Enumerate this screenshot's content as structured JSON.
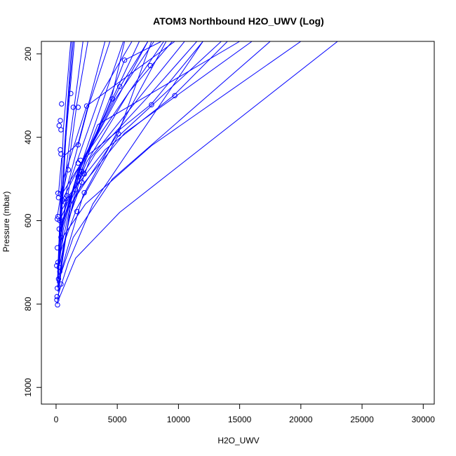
{
  "chart_data": {
    "type": "line",
    "title": "ATOM3 Northbound H2O_UWV (Log)",
    "xlabel": "H2O_UWV",
    "ylabel": "Pressure (mbar)",
    "xlim": [
      -1200,
      30900
    ],
    "ylim": [
      1040,
      170
    ],
    "y_reversed": true,
    "x_ticks": [
      "0",
      "5000",
      "10000",
      "15000",
      "20000",
      "25000",
      "30000"
    ],
    "y_ticks": [
      "200",
      "400",
      "600",
      "800",
      "1000"
    ],
    "grid": false,
    "legend": "none",
    "series_color": "#0000ff",
    "marker": "open-circle",
    "series": [
      {
        "x": [
          150,
          300,
          800,
          1500
        ],
        "y": [
          760,
          600,
          400,
          170
        ]
      },
      {
        "x": [
          200,
          350,
          700,
          1300
        ],
        "y": [
          730,
          620,
          420,
          170
        ]
      },
      {
        "x": [
          100,
          250,
          600,
          1200
        ],
        "y": [
          750,
          640,
          380,
          170
        ]
      },
      {
        "x": [
          300,
          500,
          900,
          1400
        ],
        "y": [
          700,
          560,
          350,
          170
        ]
      },
      {
        "x": [
          150,
          400,
          1100,
          2200
        ],
        "y": [
          720,
          580,
          410,
          170
        ]
      },
      {
        "x": [
          250,
          900,
          2600,
          4400
        ],
        "y": [
          690,
          520,
          330,
          170
        ]
      },
      {
        "x": [
          200,
          1200,
          3600,
          6200
        ],
        "y": [
          660,
          500,
          300,
          170
        ]
      },
      {
        "x": [
          300,
          1800,
          4800,
          8000
        ],
        "y": [
          640,
          480,
          310,
          170
        ]
      },
      {
        "x": [
          400,
          2500,
          6000,
          9500
        ],
        "y": [
          610,
          460,
          290,
          170
        ]
      },
      {
        "x": [
          350,
          3200,
          7600,
          11500
        ],
        "y": [
          580,
          440,
          300,
          170
        ]
      },
      {
        "x": [
          500,
          4000,
          9600,
          14000
        ],
        "y": [
          560,
          430,
          300,
          170
        ]
      },
      {
        "x": [
          450,
          2000,
          5600,
          16000
        ],
        "y": [
          600,
          520,
          390,
          170
        ]
      },
      {
        "x": [
          300,
          2400,
          7800,
          20000
        ],
        "y": [
          650,
          560,
          420,
          170
        ]
      },
      {
        "x": [
          200,
          1600,
          5200,
          23000
        ],
        "y": [
          790,
          690,
          580,
          170
        ]
      },
      {
        "x": [
          150,
          1000,
          3000,
          12000
        ],
        "y": [
          780,
          700,
          560,
          170
        ]
      },
      {
        "x": [
          100,
          800,
          2200,
          9000
        ],
        "y": [
          760,
          680,
          540,
          170
        ]
      },
      {
        "x": [
          250,
          1400,
          4600,
          17500
        ],
        "y": [
          740,
          640,
          500,
          170
        ]
      },
      {
        "x": [
          200,
          600,
          1800,
          7500
        ],
        "y": [
          720,
          620,
          480,
          170
        ]
      },
      {
        "x": [
          350,
          1100,
          2800,
          10500
        ],
        "y": [
          700,
          590,
          450,
          170
        ]
      },
      {
        "x": [
          300,
          1700,
          5000,
          13500
        ],
        "y": [
          680,
          570,
          400,
          170
        ]
      },
      {
        "x": [
          100,
          500,
          1400,
          5500
        ],
        "y": [
          800,
          700,
          520,
          170
        ]
      },
      {
        "x": [
          150,
          700,
          2000,
          6800
        ],
        "y": [
          770,
          650,
          470,
          170
        ]
      },
      {
        "x": [
          400,
          1300,
          3400,
          15000
        ],
        "y": [
          620,
          530,
          370,
          170
        ]
      },
      {
        "x": [
          200,
          950,
          2500,
          8800
        ],
        "y": [
          740,
          610,
          440,
          170
        ]
      },
      {
        "x": [
          300,
          2100,
          5600,
          8600
        ],
        "y": [
          600,
          480,
          215,
          170
        ]
      },
      {
        "x": [
          250,
          1500,
          4500,
          5600
        ],
        "y": [
          630,
          520,
          310,
          170
        ]
      },
      {
        "x": [
          150,
          1200,
          5100,
          7800
        ],
        "y": [
          700,
          560,
          390,
          170
        ]
      },
      {
        "x": [
          400,
          2300,
          7800,
          12000
        ],
        "y": [
          540,
          450,
          320,
          170
        ]
      },
      {
        "x": [
          100,
          600,
          2500,
          9700
        ],
        "y": [
          590,
          500,
          325,
          170
        ]
      },
      {
        "x": [
          350,
          1900,
          5200,
          7500
        ],
        "y": [
          560,
          470,
          280,
          170
        ]
      },
      {
        "x": [
          200,
          450,
          1800,
          4000
        ],
        "y": [
          535,
          450,
          415,
          170
        ]
      },
      {
        "x": [
          500,
          1000,
          1700,
          2600
        ],
        "y": [
          540,
          470,
          320,
          170
        ]
      }
    ],
    "points": [
      {
        "x": 5600,
        "y": 215
      },
      {
        "x": 7700,
        "y": 228
      },
      {
        "x": 5200,
        "y": 278
      },
      {
        "x": 9700,
        "y": 300
      },
      {
        "x": 4600,
        "y": 308
      },
      {
        "x": 7800,
        "y": 322
      },
      {
        "x": 1200,
        "y": 295
      },
      {
        "x": 1400,
        "y": 328
      },
      {
        "x": 1800,
        "y": 328
      },
      {
        "x": 2500,
        "y": 325
      },
      {
        "x": 450,
        "y": 320
      },
      {
        "x": 350,
        "y": 360
      },
      {
        "x": 250,
        "y": 372
      },
      {
        "x": 400,
        "y": 382
      },
      {
        "x": 5100,
        "y": 392
      },
      {
        "x": 1800,
        "y": 418
      },
      {
        "x": 350,
        "y": 430
      },
      {
        "x": 400,
        "y": 440
      },
      {
        "x": 2000,
        "y": 455
      },
      {
        "x": 1800,
        "y": 462
      },
      {
        "x": 1000,
        "y": 478
      },
      {
        "x": 2100,
        "y": 482
      },
      {
        "x": 2300,
        "y": 488
      },
      {
        "x": 1800,
        "y": 495
      },
      {
        "x": 2100,
        "y": 508
      },
      {
        "x": 1600,
        "y": 526
      },
      {
        "x": 2300,
        "y": 533
      },
      {
        "x": 150,
        "y": 534
      },
      {
        "x": 350,
        "y": 536
      },
      {
        "x": 900,
        "y": 540
      },
      {
        "x": 200,
        "y": 545
      },
      {
        "x": 500,
        "y": 550
      },
      {
        "x": 700,
        "y": 555
      },
      {
        "x": 1700,
        "y": 578
      },
      {
        "x": 150,
        "y": 590
      },
      {
        "x": 100,
        "y": 596
      },
      {
        "x": 300,
        "y": 600
      },
      {
        "x": 250,
        "y": 620
      },
      {
        "x": 400,
        "y": 640
      },
      {
        "x": 100,
        "y": 665
      },
      {
        "x": 150,
        "y": 700
      },
      {
        "x": 50,
        "y": 708
      },
      {
        "x": 250,
        "y": 712
      },
      {
        "x": 300,
        "y": 722
      },
      {
        "x": 200,
        "y": 740
      },
      {
        "x": 400,
        "y": 752
      },
      {
        "x": 100,
        "y": 762
      },
      {
        "x": 80,
        "y": 782
      },
      {
        "x": 60,
        "y": 790
      },
      {
        "x": 120,
        "y": 802
      }
    ]
  }
}
